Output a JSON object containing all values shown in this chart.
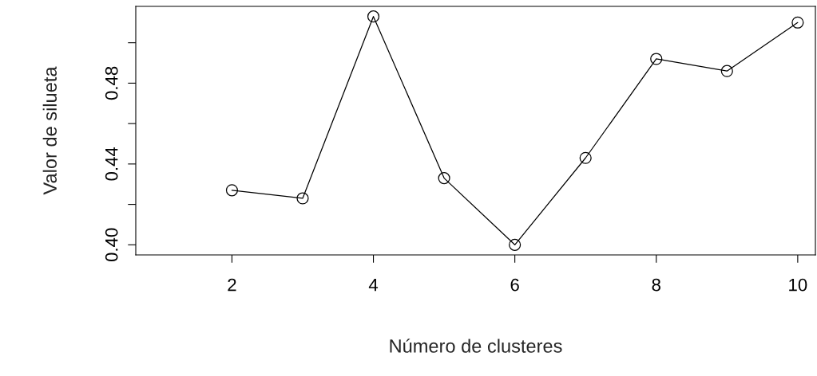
{
  "chart_data": {
    "type": "line",
    "xlabel": "Número de clusteres",
    "ylabel": "Valor de silueta",
    "x": [
      2,
      3,
      4,
      5,
      6,
      7,
      8,
      9,
      10
    ],
    "series": [
      {
        "color": "#000000",
        "values": [
          0.427,
          0.423,
          0.513,
          0.433,
          0.4,
          0.443,
          0.492,
          0.486,
          0.51
        ]
      }
    ],
    "marker": "circle",
    "line_style": "solid",
    "grid": false,
    "legend": false,
    "xlim": [
      0.64,
      10.25
    ],
    "xticks": [
      2,
      4,
      6,
      8,
      10
    ],
    "ylim": [
      0.395,
      0.518
    ],
    "yticks": [
      {
        "value": 0.4,
        "label": "0.40"
      },
      {
        "value": 0.42,
        "label": null
      },
      {
        "value": 0.44,
        "label": "0.44"
      },
      {
        "value": 0.46,
        "label": null
      },
      {
        "value": 0.48,
        "label": "0.48"
      },
      {
        "value": 0.5,
        "label": null
      }
    ]
  }
}
